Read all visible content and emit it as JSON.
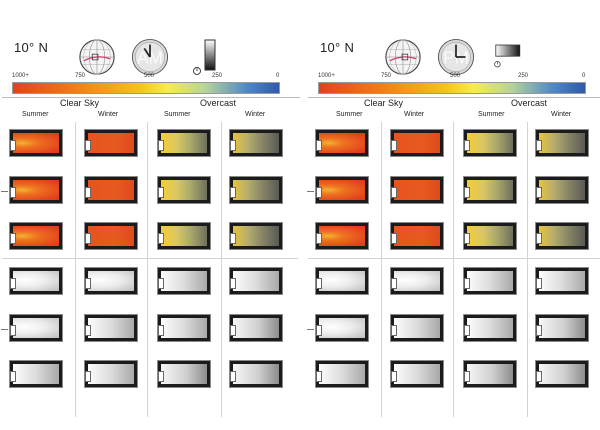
{
  "panels": [
    {
      "id": "am",
      "latitude": "10° N",
      "clock_label": "AM",
      "scale_ticks": [
        "1000+",
        "750",
        "500",
        "250",
        "0"
      ],
      "sky_headers": [
        "Clear Sky",
        "Overcast"
      ],
      "season_headers": [
        "Summer",
        "Winter",
        "Summer",
        "Winter"
      ]
    },
    {
      "id": "pm",
      "latitude": "10° N",
      "clock_label": "PM",
      "scale_ticks": [
        "1000+",
        "750",
        "500",
        "250",
        "0"
      ],
      "sky_headers": [
        "Clear Sky",
        "Overcast"
      ],
      "season_headers": [
        "Summer",
        "Winter",
        "Summer",
        "Winter"
      ]
    }
  ],
  "colors": {
    "illuminance_high": "#e2421f",
    "illuminance_mid": "#f4c51a",
    "illuminance_low": "#2f58a9",
    "room_border": "#1b1b1b"
  },
  "icons": [
    "globe-icon",
    "clock-icon",
    "gauge-icon",
    "room-plan-icon"
  ]
}
